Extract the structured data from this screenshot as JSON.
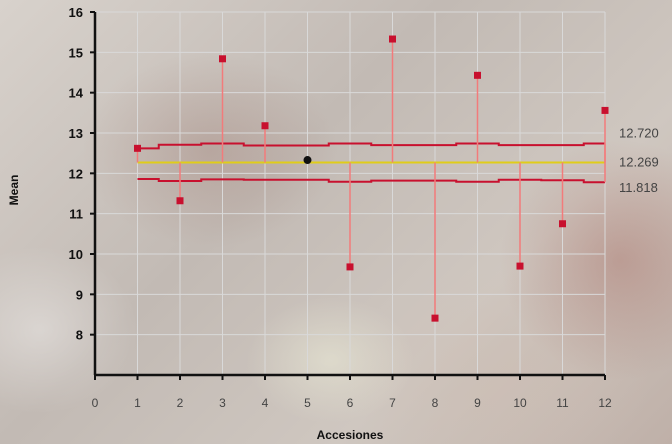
{
  "chart_data": {
    "type": "scatter",
    "xlabel": "Accesiones",
    "ylabel": "Mean",
    "xlim": [
      0,
      12
    ],
    "ylim": [
      7,
      16
    ],
    "x_ticks": [
      "0",
      "1",
      "2",
      "3",
      "4",
      "5",
      "6",
      "7",
      "8",
      "9",
      "10",
      "11",
      "12"
    ],
    "y_ticks": [
      "8",
      "9",
      "10",
      "11",
      "12",
      "13",
      "14",
      "15",
      "16"
    ],
    "grid": true,
    "points": [
      {
        "x": 1,
        "y": 12.62
      },
      {
        "x": 2,
        "y": 11.32
      },
      {
        "x": 3,
        "y": 14.84
      },
      {
        "x": 4,
        "y": 13.18
      },
      {
        "x": 5,
        "y": 12.33
      },
      {
        "x": 6,
        "y": 9.68
      },
      {
        "x": 7,
        "y": 15.33
      },
      {
        "x": 8,
        "y": 8.41
      },
      {
        "x": 9,
        "y": 14.43
      },
      {
        "x": 10,
        "y": 9.7
      },
      {
        "x": 11,
        "y": 10.75
      },
      {
        "x": 12,
        "y": 13.56
      }
    ],
    "highlight_point_x": 5,
    "center_line": 12.269,
    "upper_limit": [
      12.62,
      12.71,
      12.74,
      12.69,
      12.69,
      12.74,
      12.7,
      12.7,
      12.74,
      12.7,
      12.7,
      12.74
    ],
    "lower_limit": [
      11.86,
      11.81,
      11.85,
      11.84,
      11.84,
      11.79,
      11.82,
      11.82,
      11.79,
      11.84,
      11.83,
      11.78
    ],
    "reference_labels": [
      "12.720",
      "12.269",
      "11.818"
    ],
    "colors": {
      "marker": "#c8102e",
      "highlight": "#111111",
      "stem": "#f27b7b",
      "center_line": "#e0cd19",
      "limit_line": "#c8102e",
      "grid": "#d9d9d9",
      "axis": "#111111"
    }
  }
}
